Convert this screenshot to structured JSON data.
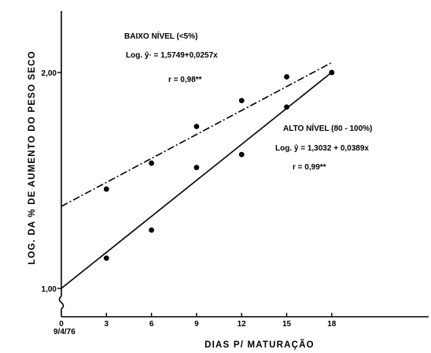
{
  "chart_data": {
    "type": "scatter",
    "xlabel": "DIAS P/ MATURAÇÃO",
    "ylabel": "LOG. DA % DE AUMENTO DO PESO SECO",
    "x_ticks": [
      "0",
      "3",
      "6",
      "9",
      "12",
      "15",
      "18"
    ],
    "x_origin_date": "9/4/76",
    "y_ticks": [
      "1,00",
      "2,00"
    ],
    "xlim": [
      0,
      24
    ],
    "ylim": [
      0.85,
      2.35
    ],
    "series": [
      {
        "name": "BAIXO NÍVEL (<5%)",
        "points": [
          [
            3,
            1.46
          ],
          [
            6,
            1.58
          ],
          [
            9,
            1.75
          ],
          [
            12,
            1.87
          ],
          [
            15,
            1.98
          ],
          [
            18,
            2.0
          ]
        ],
        "fit": {
          "intercept": 1.38,
          "slope": 0.037,
          "x_range": [
            0,
            18
          ],
          "style": "dashdot"
        },
        "annotation": [
          "BAIXO NÍVEL (<5%)",
          "Log. ŷ· = 1,5749+0,0257x",
          "r = 0,98**"
        ]
      },
      {
        "name": "ALTO NÍVEL (80-100%)",
        "points": [
          [
            3,
            1.14
          ],
          [
            6,
            1.27
          ],
          [
            9,
            1.56
          ],
          [
            12,
            1.62
          ],
          [
            15,
            1.84
          ],
          [
            18,
            2.0
          ]
        ],
        "fit": {
          "intercept": 1.0,
          "slope": 0.0556,
          "x_range": [
            0,
            18
          ],
          "style": "solid"
        },
        "annotation": [
          "ALTO NÍVEL (80 - 100%)",
          "Log. ŷ = 1,3032 + 0,0389x",
          "r = 0,99**"
        ]
      }
    ]
  }
}
